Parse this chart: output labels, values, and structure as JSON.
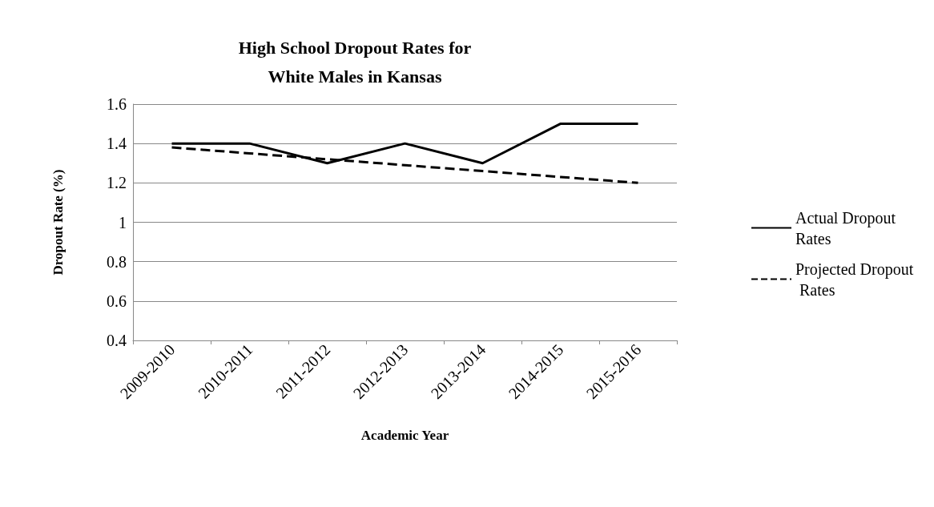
{
  "chart_data": {
    "type": "line",
    "title": "High School Dropout Rates for\nWhite Males in Kansas",
    "xlabel": "Academic Year",
    "ylabel": "Dropout Rate (%)",
    "categories": [
      "2009-2010",
      "2010-2011",
      "2011-2012",
      "2012-2013",
      "2013-2014",
      "2014-2015",
      "2015-2016"
    ],
    "series": [
      {
        "name": "Actual Dropout Rates",
        "color": "#000000",
        "line_style": "solid",
        "values": [
          1.4,
          1.4,
          1.3,
          1.4,
          1.3,
          1.5,
          1.5
        ]
      },
      {
        "name": "Projected Dropout Rates",
        "color": "#000000",
        "line_style": "dashed",
        "values": [
          1.38,
          1.35,
          1.32,
          1.29,
          1.26,
          1.23,
          1.2
        ]
      }
    ],
    "ylim": [
      0.4,
      1.6
    ],
    "yticks": [
      0.4,
      0.6,
      0.8,
      1,
      1.2,
      1.4,
      1.6
    ],
    "grid": "y",
    "legend": "right",
    "marker": "none"
  }
}
